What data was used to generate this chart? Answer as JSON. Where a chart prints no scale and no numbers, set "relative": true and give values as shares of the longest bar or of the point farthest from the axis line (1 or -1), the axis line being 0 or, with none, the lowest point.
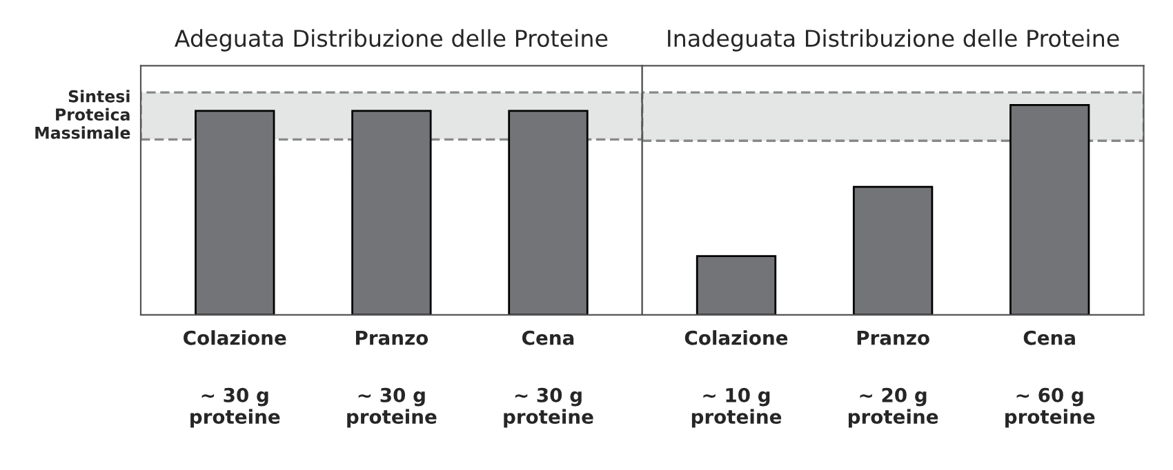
{
  "chart_data": [
    {
      "type": "bar",
      "title": "Adeguata Distribuzione delle Proteine",
      "relative": true,
      "categories": [
        "Colazione",
        "Pranzo",
        "Cena"
      ],
      "annotations": [
        "~ 30 g\nproteine",
        "~ 30 g\nproteine",
        "~ 30 g\nproteine"
      ],
      "series": [
        {
          "color": "#737477",
          "values": [
            1,
            1,
            1
          ]
        }
      ],
      "bands": [
        {
          "axis": "y",
          "from": 0.86,
          "to": 1.09,
          "label": "Sintesi\nProteica\nMassimale",
          "color": "#e3e6e5"
        }
      ],
      "grid": false,
      "legend": false
    },
    {
      "type": "bar",
      "title": "Inadeguata Distribuzione delle Proteine",
      "relative": true,
      "categories": [
        "Colazione",
        "Pranzo",
        "Cena"
      ],
      "annotations": [
        "~ 10 g\nproteine",
        "~ 20 g\nproteine",
        "~ 60 g\nproteine"
      ],
      "series": [
        {
          "color": "#737477",
          "values": [
            0.28,
            0.61,
            1
          ]
        }
      ],
      "bands": [
        {
          "axis": "y",
          "from": 0.83,
          "to": 1.06,
          "color": "#e3e6e5"
        }
      ],
      "grid": false,
      "legend": false
    }
  ]
}
